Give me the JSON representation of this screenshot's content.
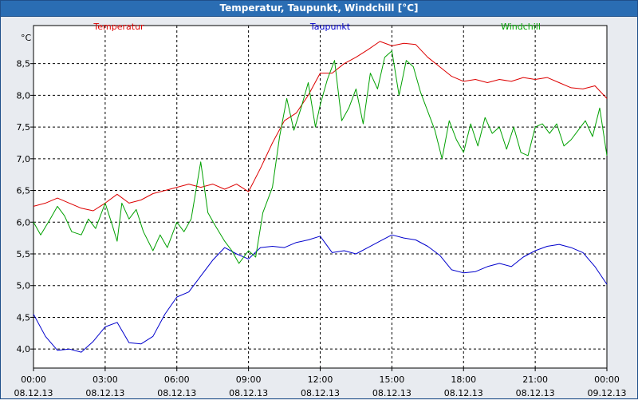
{
  "window": {
    "title": "Temperatur, Taupunkt, Windchill [°C]"
  },
  "colors": {
    "Temperatur": "#dd0000",
    "Taupunkt": "#0000cc",
    "Windchill": "#00a000"
  },
  "chart_data": {
    "type": "line",
    "title": "Temperatur, Taupunkt, Windchill [°C]",
    "ylabel": "°C",
    "xlabel": "",
    "ylim": [
      3.7,
      9.1
    ],
    "yticks": [
      "4,0",
      "4,5",
      "5,0",
      "5,5",
      "6,0",
      "6,5",
      "7,0",
      "7,5",
      "8,0",
      "8,5"
    ],
    "ytick_values": [
      4.0,
      4.5,
      5.0,
      5.5,
      6.0,
      6.5,
      7.0,
      7.5,
      8.0,
      8.5
    ],
    "xlim": [
      "08.12.13 00:00",
      "09.12.13 00:00"
    ],
    "xticks": [
      {
        "time": "00:00",
        "date": "08.12.13",
        "hour": 0
      },
      {
        "time": "03:00",
        "date": "08.12.13",
        "hour": 3
      },
      {
        "time": "06:00",
        "date": "08.12.13",
        "hour": 6
      },
      {
        "time": "09:00",
        "date": "08.12.13",
        "hour": 9
      },
      {
        "time": "12:00",
        "date": "08.12.13",
        "hour": 12
      },
      {
        "time": "15:00",
        "date": "08.12.13",
        "hour": 15
      },
      {
        "time": "18:00",
        "date": "08.12.13",
        "hour": 18
      },
      {
        "time": "21:00",
        "date": "08.12.13",
        "hour": 21
      },
      {
        "time": "00:00",
        "date": "09.12.13",
        "hour": 24
      }
    ],
    "grid": true,
    "legend_position": "top",
    "series": [
      {
        "name": "Temperatur",
        "points": [
          [
            0,
            6.25
          ],
          [
            0.5,
            6.3
          ],
          [
            1,
            6.38
          ],
          [
            1.5,
            6.3
          ],
          [
            2,
            6.22
          ],
          [
            2.5,
            6.18
          ],
          [
            3,
            6.3
          ],
          [
            3.5,
            6.44
          ],
          [
            4,
            6.3
          ],
          [
            4.5,
            6.35
          ],
          [
            5,
            6.45
          ],
          [
            5.5,
            6.5
          ],
          [
            6,
            6.55
          ],
          [
            6.5,
            6.6
          ],
          [
            7,
            6.55
          ],
          [
            7.5,
            6.6
          ],
          [
            8,
            6.52
          ],
          [
            8.5,
            6.6
          ],
          [
            9,
            6.48
          ],
          [
            9.5,
            6.85
          ],
          [
            10,
            7.25
          ],
          [
            10.5,
            7.6
          ],
          [
            11,
            7.72
          ],
          [
            11.5,
            8.0
          ],
          [
            12,
            8.35
          ],
          [
            12.5,
            8.35
          ],
          [
            13,
            8.5
          ],
          [
            13.5,
            8.6
          ],
          [
            14,
            8.72
          ],
          [
            14.5,
            8.85
          ],
          [
            15,
            8.78
          ],
          [
            15.5,
            8.82
          ],
          [
            16,
            8.8
          ],
          [
            16.5,
            8.6
          ],
          [
            17,
            8.45
          ],
          [
            17.5,
            8.3
          ],
          [
            18,
            8.22
          ],
          [
            18.5,
            8.25
          ],
          [
            19,
            8.2
          ],
          [
            19.5,
            8.25
          ],
          [
            20,
            8.22
          ],
          [
            20.5,
            8.28
          ],
          [
            21,
            8.25
          ],
          [
            21.5,
            8.28
          ],
          [
            22,
            8.2
          ],
          [
            22.5,
            8.12
          ],
          [
            23,
            8.1
          ],
          [
            23.5,
            8.15
          ],
          [
            24,
            7.95
          ]
        ]
      },
      {
        "name": "Taupunkt",
        "points": [
          [
            0,
            4.55
          ],
          [
            0.5,
            4.2
          ],
          [
            1,
            3.98
          ],
          [
            1.5,
            4.0
          ],
          [
            2,
            3.95
          ],
          [
            2.5,
            4.12
          ],
          [
            3,
            4.35
          ],
          [
            3.5,
            4.42
          ],
          [
            4,
            4.1
          ],
          [
            4.5,
            4.08
          ],
          [
            5,
            4.2
          ],
          [
            5.5,
            4.55
          ],
          [
            6,
            4.82
          ],
          [
            6.5,
            4.9
          ],
          [
            7,
            5.15
          ],
          [
            7.5,
            5.4
          ],
          [
            8,
            5.6
          ],
          [
            8.5,
            5.5
          ],
          [
            9,
            5.42
          ],
          [
            9.5,
            5.6
          ],
          [
            10,
            5.62
          ],
          [
            10.5,
            5.6
          ],
          [
            11,
            5.68
          ],
          [
            11.5,
            5.72
          ],
          [
            12,
            5.78
          ],
          [
            12.5,
            5.52
          ],
          [
            13,
            5.55
          ],
          [
            13.5,
            5.5
          ],
          [
            14,
            5.6
          ],
          [
            14.5,
            5.7
          ],
          [
            15,
            5.8
          ],
          [
            15.5,
            5.75
          ],
          [
            16,
            5.72
          ],
          [
            16.5,
            5.62
          ],
          [
            17,
            5.48
          ],
          [
            17.5,
            5.25
          ],
          [
            18,
            5.2
          ],
          [
            18.5,
            5.22
          ],
          [
            19,
            5.3
          ],
          [
            19.5,
            5.35
          ],
          [
            20,
            5.3
          ],
          [
            20.5,
            5.45
          ],
          [
            21,
            5.55
          ],
          [
            21.5,
            5.62
          ],
          [
            22,
            5.65
          ],
          [
            22.5,
            5.6
          ],
          [
            23,
            5.52
          ],
          [
            23.5,
            5.3
          ],
          [
            24,
            5.02
          ]
        ]
      },
      {
        "name": "Windchill",
        "points": [
          [
            0,
            6.0
          ],
          [
            0.3,
            5.8
          ],
          [
            0.7,
            6.05
          ],
          [
            1,
            6.25
          ],
          [
            1.3,
            6.1
          ],
          [
            1.6,
            5.85
          ],
          [
            2,
            5.8
          ],
          [
            2.3,
            6.05
          ],
          [
            2.6,
            5.9
          ],
          [
            3,
            6.3
          ],
          [
            3.3,
            5.95
          ],
          [
            3.5,
            5.7
          ],
          [
            3.7,
            6.3
          ],
          [
            4,
            6.05
          ],
          [
            4.3,
            6.2
          ],
          [
            4.6,
            5.85
          ],
          [
            5,
            5.55
          ],
          [
            5.3,
            5.8
          ],
          [
            5.6,
            5.6
          ],
          [
            6,
            6.0
          ],
          [
            6.3,
            5.85
          ],
          [
            6.6,
            6.05
          ],
          [
            7,
            6.95
          ],
          [
            7.3,
            6.15
          ],
          [
            7.6,
            5.95
          ],
          [
            8,
            5.7
          ],
          [
            8.3,
            5.55
          ],
          [
            8.6,
            5.35
          ],
          [
            9,
            5.55
          ],
          [
            9.3,
            5.45
          ],
          [
            9.6,
            6.15
          ],
          [
            10,
            6.55
          ],
          [
            10.3,
            7.35
          ],
          [
            10.6,
            7.95
          ],
          [
            10.9,
            7.45
          ],
          [
            11.2,
            7.8
          ],
          [
            11.5,
            8.2
          ],
          [
            11.8,
            7.5
          ],
          [
            12,
            7.85
          ],
          [
            12.3,
            8.25
          ],
          [
            12.6,
            8.55
          ],
          [
            12.9,
            7.6
          ],
          [
            13.2,
            7.8
          ],
          [
            13.5,
            8.1
          ],
          [
            13.8,
            7.55
          ],
          [
            14.1,
            8.35
          ],
          [
            14.4,
            8.1
          ],
          [
            14.7,
            8.6
          ],
          [
            15,
            8.7
          ],
          [
            15.3,
            8.0
          ],
          [
            15.6,
            8.55
          ],
          [
            15.9,
            8.45
          ],
          [
            16.2,
            8.05
          ],
          [
            16.5,
            7.75
          ],
          [
            16.8,
            7.45
          ],
          [
            17.1,
            7.0
          ],
          [
            17.4,
            7.6
          ],
          [
            17.7,
            7.3
          ],
          [
            18,
            7.1
          ],
          [
            18.3,
            7.55
          ],
          [
            18.6,
            7.2
          ],
          [
            18.9,
            7.65
          ],
          [
            19.2,
            7.4
          ],
          [
            19.5,
            7.5
          ],
          [
            19.8,
            7.15
          ],
          [
            20.1,
            7.5
          ],
          [
            20.4,
            7.1
          ],
          [
            20.7,
            7.05
          ],
          [
            21,
            7.5
          ],
          [
            21.3,
            7.55
          ],
          [
            21.6,
            7.4
          ],
          [
            21.9,
            7.55
          ],
          [
            22.2,
            7.2
          ],
          [
            22.5,
            7.3
          ],
          [
            22.8,
            7.45
          ],
          [
            23.1,
            7.6
          ],
          [
            23.4,
            7.35
          ],
          [
            23.7,
            7.8
          ],
          [
            24,
            7.05
          ]
        ]
      }
    ]
  }
}
